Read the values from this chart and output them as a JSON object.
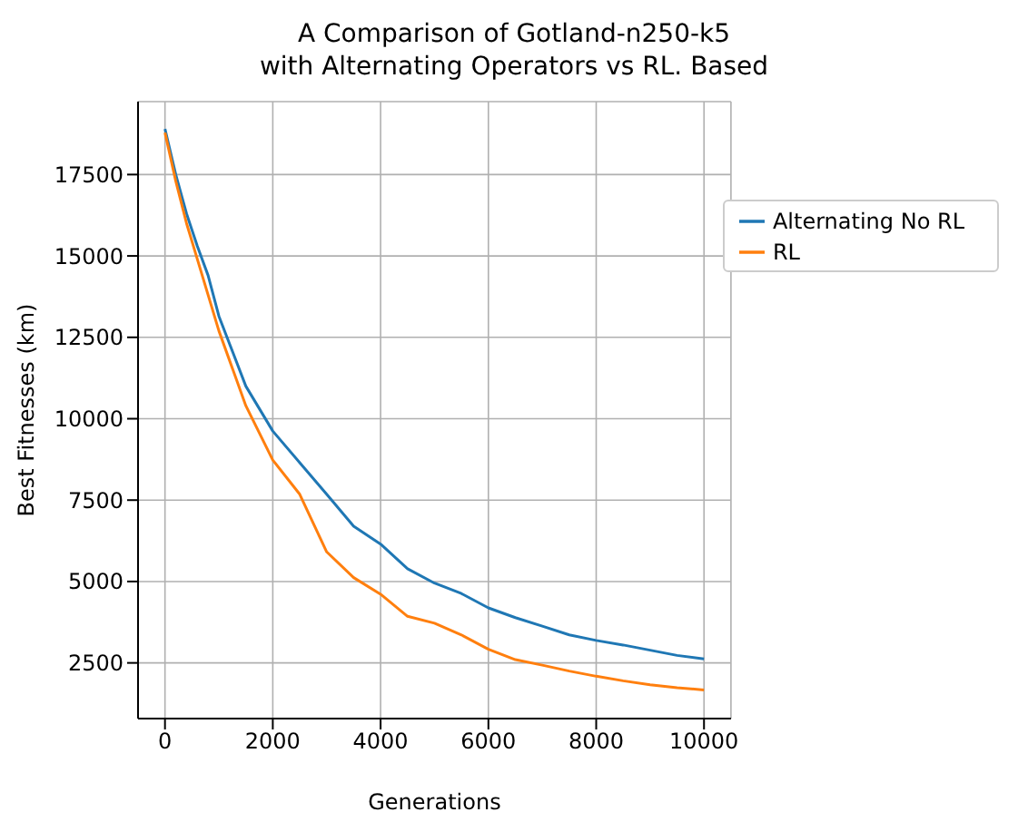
{
  "chart_data": {
    "type": "line",
    "title": "A Comparison of Gotland-n250-k5\nwith Alternating Operators vs RL. Based",
    "xlabel": "Generations",
    "ylabel": "Best Fitnesses (km)",
    "x": [
      0,
      200,
      400,
      600,
      800,
      1000,
      1500,
      2000,
      2500,
      3000,
      3500,
      4000,
      4500,
      5000,
      5500,
      6000,
      6500,
      7000,
      7500,
      8000,
      8500,
      9000,
      9500,
      10000
    ],
    "series": [
      {
        "name": "Alternating No RL",
        "color": "#1f77b4",
        "values": [
          18900,
          17500,
          16300,
          15300,
          14400,
          13150,
          11000,
          9620,
          8650,
          7680,
          6700,
          6150,
          5390,
          4950,
          4630,
          4190,
          3890,
          3630,
          3360,
          3190,
          3050,
          2890,
          2730,
          2620
        ]
      },
      {
        "name": "RL",
        "color": "#ff7f0e",
        "values": [
          18790,
          17300,
          16000,
          14900,
          13800,
          12700,
          10400,
          8730,
          7680,
          5910,
          5120,
          4610,
          3930,
          3720,
          3360,
          2920,
          2600,
          2430,
          2250,
          2090,
          1950,
          1830,
          1740,
          1670
        ]
      }
    ],
    "xlim": [
      -500,
      10500
    ],
    "ylim": [
      790,
      19740
    ],
    "xticks": [
      0,
      2000,
      4000,
      6000,
      8000,
      10000
    ],
    "yticks": [
      2500,
      5000,
      7500,
      10000,
      12500,
      15000,
      17500
    ],
    "grid": true,
    "legend": "top right",
    "line_style": "solid",
    "marker": "none"
  }
}
